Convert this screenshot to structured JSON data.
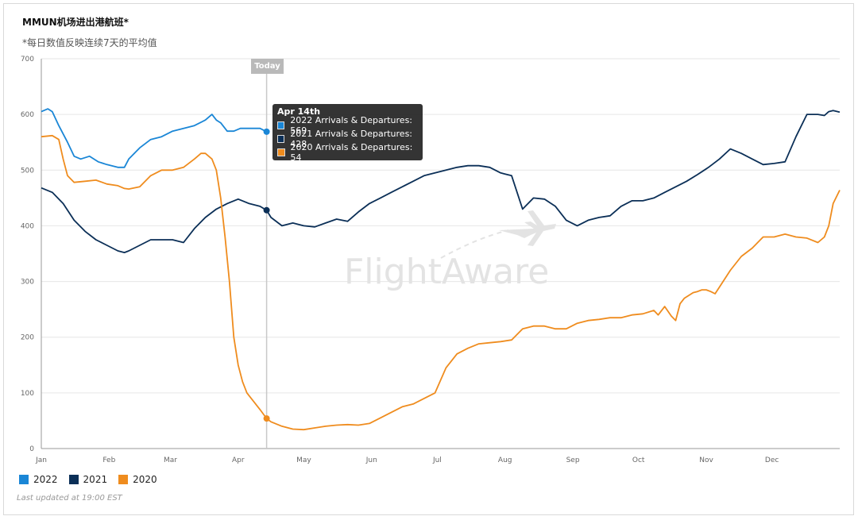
{
  "header": {
    "title": "MMUN机场进出港航班*",
    "subtitle": "*每日数值反映连续7天的平均值"
  },
  "today_label": "Today",
  "watermark": "FlightAware",
  "updated": "Last updated at 19:00 EST",
  "tooltip": {
    "title": "Apr 14th",
    "rows": [
      {
        "text": "2022 Arrivals & Departures: 569",
        "color": "#1a86d6"
      },
      {
        "text": "2021 Arrivals & Departures: 428",
        "color": "#0b2f57"
      },
      {
        "text": "2020 Arrivals & Departures: 54",
        "color": "#ef8c1e"
      }
    ]
  },
  "colors": {
    "s2022": "#1a86d6",
    "s2021": "#0b2f57",
    "s2020": "#ef8c1e",
    "grid": "#e6e6e6",
    "today_line": "#c8c8c8"
  },
  "chart_data": {
    "type": "line",
    "title": "MMUN机场进出港航班*",
    "subtitle": "*每日数值反映连续7天的平均值",
    "xlabel": "",
    "ylabel": "",
    "ylim": [
      0,
      700
    ],
    "yticks": [
      0,
      100,
      200,
      300,
      400,
      500,
      600,
      700
    ],
    "xlim": [
      0,
      365
    ],
    "xticks": [
      {
        "label": "Jan",
        "day": 0
      },
      {
        "label": "Feb",
        "day": 31
      },
      {
        "label": "Mar",
        "day": 59
      },
      {
        "label": "Apr",
        "day": 90
      },
      {
        "label": "May",
        "day": 120
      },
      {
        "label": "Jun",
        "day": 151
      },
      {
        "label": "Jul",
        "day": 181
      },
      {
        "label": "Aug",
        "day": 212
      },
      {
        "label": "Sep",
        "day": 243
      },
      {
        "label": "Oct",
        "day": 273
      },
      {
        "label": "Nov",
        "day": 304
      },
      {
        "label": "Dec",
        "day": 334
      }
    ],
    "today_day": 103,
    "legend_position": "bottom-left",
    "grid": true,
    "series": [
      {
        "name": "2022",
        "color": "#1a86d6",
        "x": [
          0,
          3,
          5,
          8,
          12,
          15,
          18,
          22,
          26,
          30,
          35,
          38,
          40,
          45,
          50,
          55,
          60,
          65,
          70,
          75,
          78,
          80,
          82,
          85,
          88,
          91,
          94,
          97,
          100,
          103
        ],
        "y": [
          605,
          610,
          605,
          580,
          550,
          525,
          520,
          525,
          515,
          510,
          505,
          505,
          520,
          540,
          555,
          560,
          570,
          575,
          580,
          590,
          600,
          590,
          585,
          570,
          570,
          575,
          575,
          575,
          575,
          569
        ]
      },
      {
        "name": "2021",
        "color": "#0b2f57",
        "x": [
          0,
          5,
          10,
          15,
          20,
          25,
          30,
          35,
          38,
          40,
          45,
          50,
          55,
          60,
          65,
          70,
          75,
          80,
          85,
          90,
          95,
          100,
          103,
          105,
          110,
          115,
          120,
          125,
          130,
          135,
          140,
          145,
          150,
          155,
          160,
          165,
          170,
          175,
          180,
          185,
          190,
          195,
          200,
          205,
          210,
          215,
          220,
          225,
          230,
          235,
          240,
          245,
          250,
          255,
          260,
          265,
          270,
          275,
          280,
          285,
          290,
          295,
          300,
          305,
          310,
          315,
          320,
          325,
          330,
          335,
          340,
          345,
          350,
          355,
          358,
          360,
          362,
          365
        ],
        "y": [
          468,
          460,
          440,
          410,
          390,
          375,
          365,
          355,
          352,
          355,
          365,
          375,
          375,
          375,
          370,
          395,
          415,
          430,
          440,
          448,
          440,
          435,
          428,
          415,
          400,
          405,
          400,
          398,
          405,
          412,
          408,
          425,
          440,
          450,
          460,
          470,
          480,
          490,
          495,
          500,
          505,
          508,
          508,
          505,
          495,
          490,
          430,
          450,
          448,
          435,
          410,
          400,
          410,
          415,
          418,
          435,
          445,
          445,
          450,
          460,
          470,
          480,
          492,
          505,
          520,
          538,
          530,
          520,
          510,
          512,
          515,
          560,
          600,
          600,
          598,
          605,
          607,
          604
        ]
      },
      {
        "name": "2020",
        "color": "#ef8c1e",
        "x": [
          0,
          5,
          8,
          10,
          12,
          15,
          20,
          25,
          30,
          35,
          38,
          40,
          45,
          50,
          55,
          60,
          65,
          70,
          73,
          75,
          78,
          80,
          82,
          84,
          86,
          88,
          90,
          92,
          94,
          96,
          98,
          100,
          103,
          105,
          110,
          115,
          120,
          125,
          130,
          135,
          140,
          145,
          150,
          155,
          160,
          165,
          170,
          175,
          180,
          185,
          190,
          195,
          200,
          205,
          210,
          215,
          220,
          225,
          230,
          235,
          240,
          245,
          250,
          255,
          260,
          265,
          270,
          275,
          280,
          282,
          285,
          288,
          290,
          292,
          294,
          296,
          298,
          300,
          302,
          304,
          306,
          308,
          310,
          315,
          320,
          325,
          330,
          335,
          340,
          345,
          350,
          355,
          358,
          360,
          362,
          365
        ],
        "y": [
          560,
          562,
          555,
          520,
          490,
          478,
          480,
          482,
          475,
          472,
          467,
          466,
          470,
          490,
          500,
          500,
          505,
          520,
          530,
          530,
          520,
          500,
          450,
          380,
          300,
          200,
          150,
          120,
          100,
          90,
          80,
          70,
          54,
          48,
          40,
          35,
          34,
          37,
          40,
          42,
          43,
          42,
          45,
          55,
          65,
          75,
          80,
          90,
          100,
          145,
          170,
          180,
          188,
          190,
          192,
          195,
          215,
          220,
          220,
          215,
          215,
          225,
          230,
          232,
          235,
          235,
          240,
          242,
          248,
          240,
          255,
          238,
          230,
          260,
          270,
          275,
          280,
          282,
          285,
          285,
          282,
          278,
          290,
          320,
          345,
          360,
          380,
          380,
          385,
          380,
          378,
          370,
          380,
          400,
          440,
          464
        ]
      }
    ]
  }
}
